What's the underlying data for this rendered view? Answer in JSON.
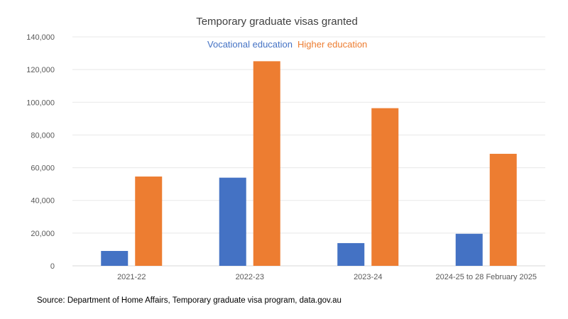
{
  "chart_data": {
    "type": "bar",
    "title": "Temporary graduate visas granted",
    "xlabel": "",
    "ylabel": "",
    "ylim": [
      0,
      140000
    ],
    "yticks": [
      0,
      20000,
      40000,
      60000,
      80000,
      100000,
      120000,
      140000
    ],
    "ytick_labels": [
      "0",
      "20,000",
      "40,000",
      "60,000",
      "80,000",
      "100,000",
      "120,000",
      "140,000"
    ],
    "grid": true,
    "legend_position": "top-center",
    "categories": [
      "2021-22",
      "2022-23",
      "2023-24",
      "2024-25 to 28 February 2025"
    ],
    "series": [
      {
        "name": "Vocational education",
        "color": "#4472C4",
        "values": [
          9100,
          53900,
          13900,
          19600
        ]
      },
      {
        "name": "Higher education",
        "color": "#ED7D31",
        "values": [
          54600,
          125100,
          96400,
          68500
        ]
      }
    ],
    "source": "Source: Department of Home Affairs, Temporary graduate visa program, data.gov.au"
  }
}
